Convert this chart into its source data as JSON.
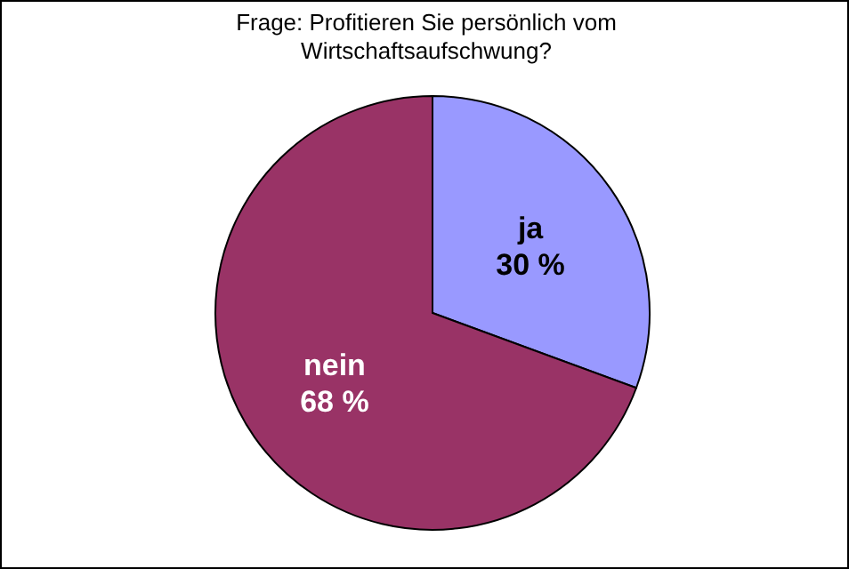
{
  "chart_data": {
    "type": "pie",
    "title": "Frage: Profitieren Sie persönlich vom Wirtschaftsaufschwung?",
    "categories": [
      "ja",
      "nein"
    ],
    "values": [
      30,
      68
    ],
    "colors": [
      "#9999ff",
      "#993366"
    ],
    "value_labels": [
      "30 %",
      "68 %"
    ]
  }
}
